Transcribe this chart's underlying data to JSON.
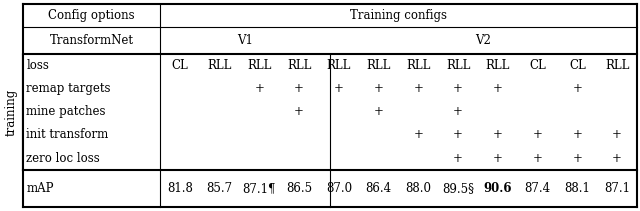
{
  "title_row_left": "Config options",
  "title_row_right": "Training configs",
  "transformnet_label": "TransformNet",
  "v1_label": "V1",
  "v2_label": "V2",
  "loss_headers": [
    "CL",
    "RLL",
    "RLL",
    "RLL",
    "RLL",
    "RLL",
    "RLL",
    "RLL",
    "RLL",
    "CL",
    "CL",
    "RLL"
  ],
  "training_labels": [
    "loss",
    "remap targets",
    "mine patches",
    "init transform",
    "zero loc loss"
  ],
  "training_data": [
    [
      "CL",
      "RLL",
      "RLL",
      "RLL",
      "RLL",
      "RLL",
      "RLL",
      "RLL",
      "RLL",
      "CL",
      "CL",
      "RLL"
    ],
    [
      "",
      "",
      "+",
      "+",
      "+",
      "+",
      "+",
      "+",
      "+",
      "",
      "+",
      ""
    ],
    [
      "",
      "",
      "",
      "+",
      "",
      "+",
      "",
      "+",
      "",
      "",
      "",
      ""
    ],
    [
      "",
      "",
      "",
      "",
      "",
      "",
      "+",
      "+",
      "+",
      "+",
      "+",
      "+"
    ],
    [
      "",
      "",
      "",
      "",
      "",
      "",
      "",
      "+",
      "+",
      "+",
      "+",
      "+"
    ]
  ],
  "map_label": "mAP",
  "map_values": [
    "81.8",
    "85.7",
    "87.1¶",
    "86.5",
    "87.0",
    "86.4",
    "88.0",
    "89.5§",
    "90.6",
    "87.4",
    "88.1",
    "87.1"
  ],
  "map_bold_idx": 8,
  "training_side_label": "training",
  "bg_color": "#ffffff",
  "font_size": 8.5,
  "figsize": [
    6.4,
    2.11
  ],
  "dpi": 100
}
